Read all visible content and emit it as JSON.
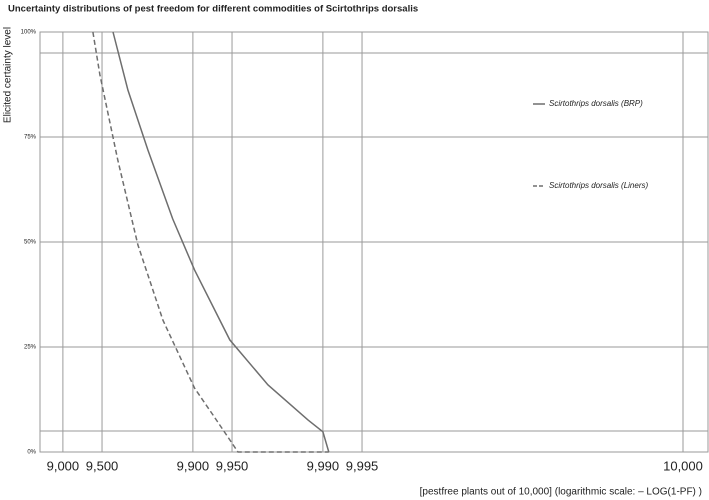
{
  "chart_data": {
    "type": "line",
    "title": "Uncertainty distributions of pest freedom for different commodities of Scirtothrips dorsalis",
    "y_label": "Elicited certainty level",
    "x_label": "[pestfree plants out of 10,000] (logarithmic scale: – LOG(1-PF) )",
    "xscale": "log-complement",
    "xlim": [
      8500,
      10000
    ],
    "xticks": [
      {
        "value": 9000,
        "label": "9,000"
      },
      {
        "value": 9500,
        "label": "9,500"
      },
      {
        "value": 9900,
        "label": "9,900"
      },
      {
        "value": 9950,
        "label": "9,950"
      },
      {
        "value": 9990,
        "label": "9,990"
      },
      {
        "value": 9995,
        "label": "9,995"
      },
      {
        "value": 10000,
        "label": "10,000"
      }
    ],
    "ylim": [
      0,
      100
    ],
    "yticks": [
      {
        "value": 0,
        "label": "0%"
      },
      {
        "value": 25,
        "label": "25%"
      },
      {
        "value": 50,
        "label": "50%"
      },
      {
        "value": 75,
        "label": "75%"
      },
      {
        "value": 100,
        "label": "100%"
      }
    ],
    "extra_hlines": [
      5,
      95
    ],
    "grid": true,
    "legend": "right",
    "series": [
      {
        "name": "Scirtothrips dorsalis (BRP)",
        "color": "#6e6e6e",
        "dash": "solid",
        "x": [
          9588,
          9684,
          9778,
          9857,
          9903,
          9948,
          9973.5,
          9987,
          9990,
          9991
        ],
        "values": [
          100,
          86.2,
          71.9,
          55.5,
          43.3,
          26.7,
          16,
          7.6,
          4.8,
          0
        ]
      },
      {
        "name": "Scirtothrips dorsalis (Liners)",
        "color": "#6e6e6e",
        "dash": "dashed",
        "x": [
          9412,
          9481,
          9622,
          9735,
          9830,
          9903,
          9930,
          9955,
          9991
        ],
        "values": [
          100,
          89.8,
          69.5,
          49.3,
          31.4,
          15.2,
          8.8,
          0,
          0
        ]
      }
    ]
  }
}
